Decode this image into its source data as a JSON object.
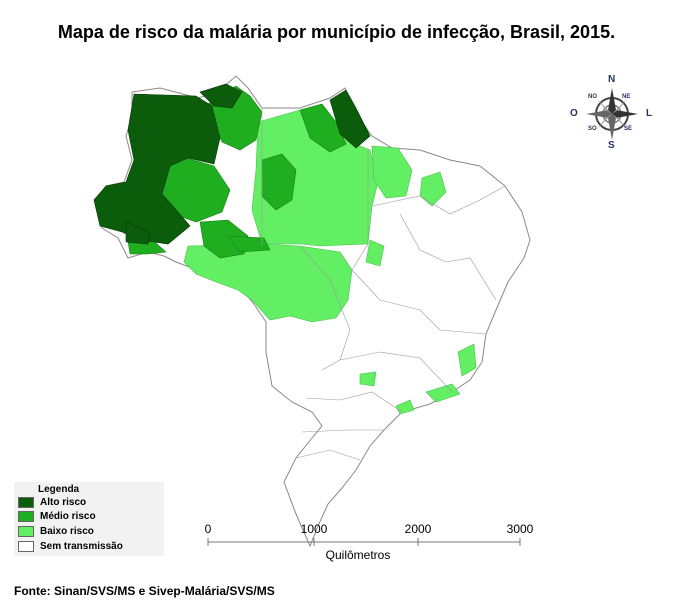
{
  "title": "Mapa de risco da malária por município de infecção, Brasil, 2015.",
  "compass": {
    "north": "N",
    "south": "S",
    "east": "L",
    "west": "O",
    "northeast": "NE",
    "northwest": "NO",
    "southeast": "SE",
    "southwest": "SO"
  },
  "legend": {
    "title": "Legenda",
    "items": [
      {
        "label": "Alto risco",
        "color": "#0b5d0b"
      },
      {
        "label": "Médio risco",
        "color": "#1fae1f"
      },
      {
        "label": "Baixo risco",
        "color": "#63ef63"
      },
      {
        "label": "Sem transmissão",
        "color": "#ffffff"
      }
    ]
  },
  "scale": {
    "ticks": [
      "0",
      "1000",
      "2000",
      "3000"
    ],
    "unit": "Quilômetros"
  },
  "source": "Fonte: Sinan/SVS/MS e Sivep-Malária/SVS/MS",
  "colors": {
    "border": "#8a8a8a"
  }
}
